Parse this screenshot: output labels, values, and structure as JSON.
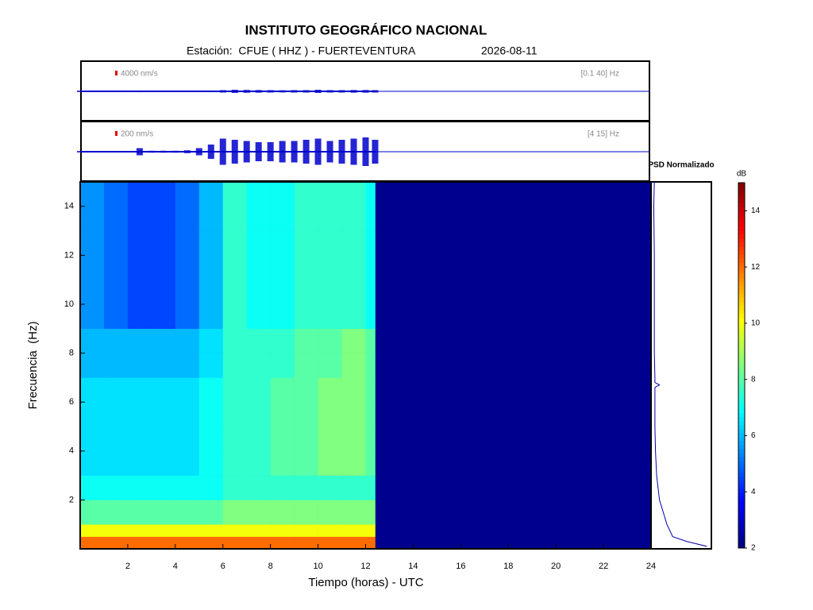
{
  "chart_data": {
    "type": "spectrogram",
    "title": "INSTITUTO GEOGRÁFICO NACIONAL",
    "station": "Estación:  CFUE ( HHZ ) - FUERTEVENTURA",
    "date": "2026-08-11",
    "xlabel": "Tiempo (horas) - UTC",
    "ylabel": "Frecuencia  (Hz)",
    "xlim": [
      0,
      24
    ],
    "xticks": [
      2,
      4,
      6,
      8,
      10,
      12,
      14,
      16,
      18,
      20,
      22,
      24
    ],
    "ylim": [
      0,
      15
    ],
    "yticks": [
      2,
      4,
      6,
      8,
      10,
      12,
      14
    ],
    "traces": [
      {
        "scale": {
          "value": 4000,
          "label": "4000 nm/s"
        },
        "band": "[0.1 40] Hz",
        "color": "#0000cc",
        "times": [
          0,
          0.5,
          1,
          1.5,
          2,
          2.5,
          3,
          3.5,
          4,
          4.5,
          5,
          5.5,
          6,
          6.5,
          7,
          7.5,
          8,
          8.5,
          9,
          9.5,
          10,
          10.5,
          11,
          11.5,
          12,
          12.4
        ],
        "values": [
          600,
          600,
          600,
          600,
          600,
          700,
          600,
          600,
          600,
          600,
          600,
          700,
          1000,
          1300,
          1200,
          1100,
          1000,
          900,
          1000,
          1000,
          1300,
          1000,
          1000,
          1100,
          1100,
          1000
        ]
      },
      {
        "scale": {
          "value": 200,
          "label": "200 nm/s"
        },
        "band": "[4 15] Hz",
        "color": "#0000cc",
        "times": [
          0,
          0.5,
          1,
          1.5,
          2,
          2.5,
          3,
          3.5,
          4,
          4.5,
          5,
          5.5,
          6,
          6.5,
          7,
          7.5,
          8,
          8.5,
          9,
          9.5,
          10,
          10.5,
          11,
          11.5,
          12,
          12.4
        ],
        "values": [
          30,
          30,
          30,
          30,
          30,
          150,
          40,
          40,
          40,
          60,
          150,
          300,
          550,
          500,
          450,
          400,
          400,
          450,
          450,
          500,
          550,
          450,
          500,
          550,
          600,
          500
        ]
      }
    ],
    "time_bins": [
      0,
      1,
      2,
      3,
      4,
      5,
      6,
      7,
      8,
      9,
      10,
      11,
      12,
      12.4
    ],
    "freq_bins": [
      0,
      0.5,
      1,
      2,
      3,
      4,
      5,
      6,
      7,
      8,
      9,
      10,
      11,
      12,
      13,
      14,
      15
    ],
    "values": [
      [
        12,
        12,
        12,
        12,
        12,
        12,
        12,
        12,
        12,
        12,
        12,
        12,
        12
      ],
      [
        10,
        10,
        10,
        10,
        10,
        10,
        10,
        10,
        10,
        10,
        10,
        10,
        10
      ],
      [
        8,
        8,
        8,
        8,
        8,
        8,
        8.5,
        8.5,
        8.5,
        8.5,
        8.5,
        8.5,
        8.5
      ],
      [
        7,
        7,
        7,
        7,
        7,
        7,
        7.5,
        7.5,
        7.5,
        7.5,
        7.5,
        7.5,
        7.5
      ],
      [
        6.5,
        6.5,
        6.5,
        6.5,
        6.5,
        7,
        7.5,
        7.5,
        8,
        8,
        8.5,
        8.5,
        8
      ],
      [
        6.5,
        6.5,
        6.5,
        6.5,
        6.5,
        7,
        7.5,
        7.5,
        8,
        8,
        8.5,
        8.5,
        8
      ],
      [
        6.5,
        6.5,
        6.5,
        6.5,
        6.5,
        7,
        7.5,
        7.5,
        8,
        8,
        8.5,
        8.5,
        8
      ],
      [
        6.5,
        6.5,
        6.5,
        6.5,
        6.5,
        7,
        7.5,
        7.5,
        8,
        8,
        8.5,
        8.5,
        8
      ],
      [
        6,
        6,
        6,
        6,
        6,
        6.5,
        7.5,
        7.5,
        7.5,
        8,
        8,
        8.5,
        8
      ],
      [
        6,
        6,
        6,
        6,
        6,
        6.5,
        7.5,
        7.5,
        7.5,
        8,
        8,
        8.5,
        8
      ],
      [
        5.5,
        5,
        4.5,
        4.5,
        5,
        6,
        7.5,
        7,
        7,
        7.5,
        7.5,
        7.5,
        7
      ],
      [
        5.5,
        5,
        4.5,
        4.5,
        5,
        6,
        7.5,
        7,
        7,
        7.5,
        7.5,
        7.5,
        7
      ],
      [
        5.5,
        5,
        4.5,
        4.5,
        5,
        6,
        7.5,
        7,
        7,
        7.5,
        7.5,
        7.5,
        7
      ],
      [
        5.5,
        5,
        4.5,
        4.5,
        5,
        6,
        7.5,
        7,
        7,
        7.5,
        7.5,
        7.5,
        7
      ],
      [
        5.5,
        5,
        4.5,
        4.5,
        5,
        6,
        7.5,
        7,
        7,
        7.5,
        7.5,
        7.5,
        7
      ],
      [
        5.5,
        5,
        4.5,
        4.5,
        5,
        6,
        7.5,
        7,
        7,
        7.5,
        7.5,
        7.5,
        7
      ]
    ],
    "psd": {
      "title": "PSD Normalizado",
      "color": "#0000aa",
      "xlim": [
        0,
        1
      ],
      "frequencies": [
        0.1,
        0.3,
        0.5,
        1,
        2,
        3,
        4,
        5,
        6,
        6.6,
        6.7,
        6.8,
        7,
        8,
        10,
        12,
        14,
        15
      ],
      "values": [
        0.95,
        0.6,
        0.35,
        0.25,
        0.12,
        0.07,
        0.05,
        0.04,
        0.04,
        0.04,
        0.12,
        0.04,
        0.04,
        0.03,
        0.03,
        0.03,
        0.02,
        0.03
      ]
    },
    "colorbar": {
      "label": "dB",
      "lim": [
        2,
        15
      ],
      "ticks": [
        2,
        4,
        6,
        8,
        10,
        12,
        14
      ]
    }
  }
}
